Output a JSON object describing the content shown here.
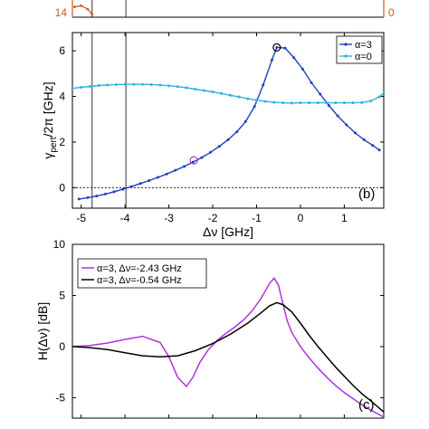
{
  "chart_data": [
    {
      "type": "line",
      "panel_label": "",
      "xlim": [
        -5.2,
        1.9
      ],
      "left_axis": {
        "ylim": [
          13.9,
          14.2
        ],
        "ticks": [
          14
        ],
        "tick_labels": [
          "14"
        ],
        "color": "#d95319"
      },
      "right_axis": {
        "ticks": [
          0
        ],
        "tick_labels": [
          "0"
        ],
        "color": "#d95319"
      },
      "vlines": [
        -4.75,
        -3.98
      ],
      "series": [
        {
          "name": "",
          "color": "#d95319",
          "x": [
            -5.15,
            -5.0,
            -4.85,
            -4.75
          ],
          "y": [
            14.08,
            14.1,
            14.04,
            13.95
          ]
        }
      ],
      "truncated": true
    },
    {
      "type": "line",
      "panel_label": "(b)",
      "xlabel": "Δν [GHz]",
      "ylabel_main": "γ",
      "ylabel_sub": "pert",
      "ylabel_rest": "/2π [GHz]",
      "xlim": [
        -5.2,
        1.9
      ],
      "ylim": [
        -0.9,
        6.8
      ],
      "xticks": [
        -5,
        -4,
        -3,
        -2,
        -1,
        0,
        1
      ],
      "xtick_labels": [
        "-5",
        "-4",
        "-3",
        "-2",
        "-1",
        "0",
        "1"
      ],
      "yticks": [
        0,
        2,
        4,
        6
      ],
      "ytick_labels": [
        "0",
        "2",
        "4",
        "6"
      ],
      "hline_dotted": 0,
      "vlines": [
        -4.75,
        -3.98
      ],
      "legend": {
        "position": "top-right",
        "entries": [
          "α=3",
          "α=0"
        ]
      },
      "series": [
        {
          "name": "α=3",
          "color": "#1f3fbf",
          "x": [
            -5.05,
            -4.85,
            -4.65,
            -4.45,
            -4.25,
            -4.05,
            -3.85,
            -3.65,
            -3.45,
            -3.25,
            -3.05,
            -2.85,
            -2.65,
            -2.45,
            -2.25,
            -2.05,
            -1.85,
            -1.65,
            -1.45,
            -1.25,
            -1.05,
            -0.85,
            -0.65,
            -0.54,
            -0.35,
            -0.15,
            0.05,
            0.25,
            0.45,
            0.65,
            0.85,
            1.05,
            1.25,
            1.45,
            1.65,
            1.8
          ],
          "y": [
            -0.5,
            -0.44,
            -0.37,
            -0.28,
            -0.18,
            -0.07,
            0.05,
            0.18,
            0.31,
            0.45,
            0.6,
            0.76,
            0.93,
            1.12,
            1.32,
            1.55,
            1.81,
            2.1,
            2.45,
            2.9,
            3.55,
            4.5,
            5.6,
            6.15,
            6.12,
            5.7,
            5.2,
            4.6,
            4.1,
            3.6,
            3.15,
            2.75,
            2.4,
            2.1,
            1.85,
            1.65
          ]
        },
        {
          "name": "α=0",
          "color": "#33b0e0",
          "x": [
            -5.2,
            -5.0,
            -4.8,
            -4.6,
            -4.4,
            -4.2,
            -4.0,
            -3.8,
            -3.6,
            -3.4,
            -3.2,
            -3.0,
            -2.8,
            -2.6,
            -2.4,
            -2.2,
            -2.0,
            -1.8,
            -1.6,
            -1.4,
            -1.2,
            -1.0,
            -0.8,
            -0.6,
            -0.4,
            -0.2,
            0.0,
            0.2,
            0.4,
            0.6,
            0.8,
            1.0,
            1.2,
            1.4,
            1.6,
            1.8,
            1.9
          ],
          "y": [
            4.35,
            4.4,
            4.44,
            4.48,
            4.5,
            4.52,
            4.53,
            4.53,
            4.53,
            4.52,
            4.5,
            4.47,
            4.43,
            4.38,
            4.32,
            4.26,
            4.2,
            4.13,
            4.05,
            3.98,
            3.9,
            3.84,
            3.78,
            3.74,
            3.72,
            3.71,
            3.72,
            3.72,
            3.72,
            3.72,
            3.72,
            3.72,
            3.72,
            3.73,
            3.8,
            3.98,
            4.15
          ]
        }
      ],
      "markers": [
        {
          "series": "α=3",
          "x": -2.43,
          "y": 1.2,
          "color": "#cc33cc"
        },
        {
          "series": "α=3",
          "x": -0.54,
          "y": 6.15,
          "color": "#000000"
        }
      ]
    },
    {
      "type": "line",
      "panel_label": "(c)",
      "ylabel": "H(Δν) [dB]",
      "xlim": [
        -5.2,
        1.9
      ],
      "ylim": [
        -7,
        10
      ],
      "yticks": [
        -5,
        0,
        5,
        10
      ],
      "ytick_labels": [
        "-5",
        "0",
        "5",
        "10"
      ],
      "legend": {
        "position": "top-left",
        "entries": [
          "α=3, Δν=-2.43 GHz",
          "α=3, Δν=-0.54 GHz"
        ]
      },
      "series": [
        {
          "name": "α=3, Δν=-2.43 GHz",
          "color": "#b030e0",
          "x": [
            -5.2,
            -4.8,
            -4.4,
            -4.0,
            -3.6,
            -3.2,
            -3.0,
            -2.8,
            -2.6,
            -2.45,
            -2.3,
            -2.1,
            -1.9,
            -1.7,
            -1.5,
            -1.3,
            -1.1,
            -0.9,
            -0.7,
            -0.6,
            -0.5,
            -0.4,
            -0.3,
            -0.2,
            0.0,
            0.2,
            0.4,
            0.6,
            0.8,
            1.0,
            1.2,
            1.4,
            1.6,
            1.9
          ],
          "y": [
            0,
            0.1,
            0.35,
            0.7,
            1.0,
            0.4,
            -1.0,
            -3.0,
            -3.9,
            -3.0,
            -1.6,
            -0.3,
            0.6,
            1.3,
            1.9,
            2.6,
            3.5,
            4.7,
            6.2,
            6.7,
            6.0,
            4.2,
            2.5,
            1.4,
            0.0,
            -1.1,
            -2.1,
            -3.0,
            -3.8,
            -4.5,
            -5.1,
            -5.7,
            -6.2,
            -6.9
          ]
        },
        {
          "name": "α=3, Δν=-0.54 GHz",
          "color": "#000000",
          "x": [
            -5.2,
            -4.8,
            -4.4,
            -4.0,
            -3.6,
            -3.2,
            -2.8,
            -2.4,
            -2.0,
            -1.6,
            -1.2,
            -0.9,
            -0.7,
            -0.54,
            -0.4,
            -0.2,
            0.0,
            0.2,
            0.4,
            0.6,
            0.8,
            1.0,
            1.2,
            1.4,
            1.6,
            1.9
          ],
          "y": [
            0,
            -0.1,
            -0.3,
            -0.6,
            -0.9,
            -1.0,
            -0.9,
            -0.4,
            0.3,
            1.2,
            2.3,
            3.3,
            4.0,
            4.3,
            4.1,
            3.4,
            2.3,
            1.1,
            0.0,
            -1.0,
            -2.0,
            -2.9,
            -3.8,
            -4.6,
            -5.3,
            -6.4
          ]
        }
      ]
    }
  ]
}
